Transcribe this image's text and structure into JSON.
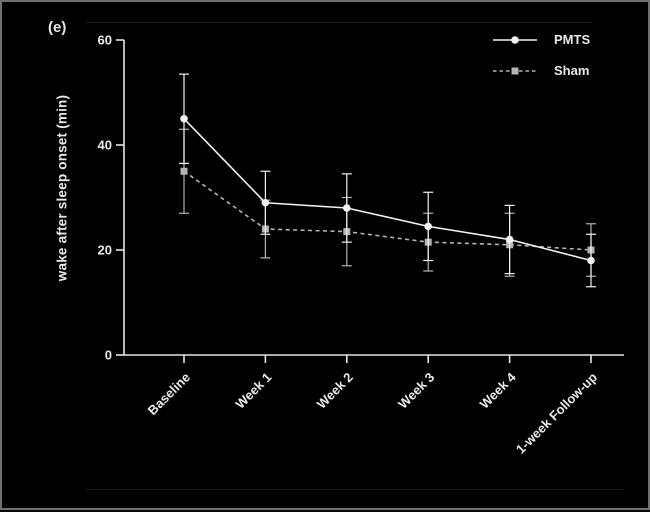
{
  "panel_label": "(e)",
  "colors": {
    "background": "#000000",
    "page_border": "#6f6f6f",
    "axis": "#e6e6e6",
    "text": "#e9e9e9",
    "pmts": "#f2f2f2",
    "sham": "#b4b4b4"
  },
  "chart_data": {
    "type": "line",
    "title": "",
    "ylabel": "wake after sleep onset (min)",
    "xlabel": "",
    "ylim": [
      0,
      60
    ],
    "yticks": [
      0,
      20,
      40,
      60
    ],
    "grid": false,
    "legend_position": "top-right",
    "error_bars": true,
    "categories": [
      "Baseline",
      "Week 1",
      "Week 2",
      "Week 3",
      "Week 4",
      "1-week Follow-up"
    ],
    "series": [
      {
        "name": "PMTS",
        "line_style": "solid",
        "marker": "circle",
        "color": "#f2f2f2",
        "values": [
          45,
          29,
          28,
          24.5,
          22,
          18
        ],
        "error": [
          8.5,
          6,
          6.5,
          6.5,
          6.5,
          5
        ]
      },
      {
        "name": "Sham",
        "line_style": "dashed",
        "marker": "square",
        "color": "#b4b4b4",
        "values": [
          35,
          24,
          23.5,
          21.5,
          21,
          20
        ],
        "error": [
          8,
          5.5,
          6.5,
          5.5,
          6,
          5
        ]
      }
    ]
  }
}
